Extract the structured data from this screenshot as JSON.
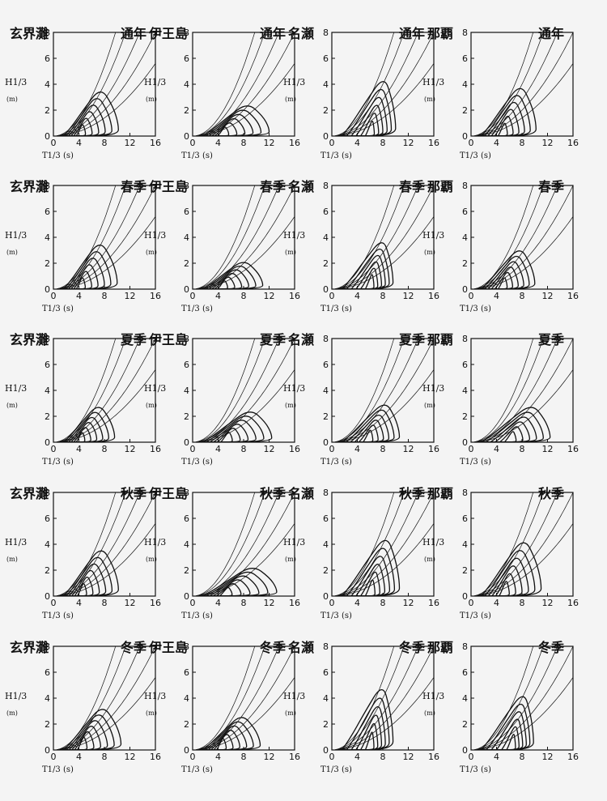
{
  "colors": {
    "ink": "#111111",
    "background": "#f4f4f4"
  },
  "chart_data": {
    "type": "contour",
    "stations": [
      "玄界灘",
      "伊王島",
      "名瀬",
      "那覇"
    ],
    "seasons": [
      "通年",
      "春季",
      "夏季",
      "秋季",
      "冬季"
    ],
    "ylabel": "H1/3",
    "yunit": "(m)",
    "xlabel": "T1/3 (s)",
    "xlim": [
      0,
      16
    ],
    "ylim": [
      0,
      8
    ],
    "xticks": [
      0,
      4,
      8,
      12,
      16
    ],
    "yticks": [
      0,
      2,
      4,
      6,
      8
    ],
    "steepness_curves": [
      0.054,
      0.04,
      0.028,
      0.02,
      0.014
    ],
    "contour_levels": 6,
    "panels": [
      {
        "station": "玄界灘",
        "season": "通年",
        "peak": [
          4.0,
          0.4
        ],
        "extent": [
          10.2,
          3.8
        ]
      },
      {
        "station": "伊王島",
        "season": "通年",
        "peak": [
          4.4,
          0.4
        ],
        "extent": [
          12.0,
          2.6
        ]
      },
      {
        "station": "名瀬",
        "season": "通年",
        "peak": [
          6.0,
          0.6
        ],
        "extent": [
          10.0,
          4.7
        ]
      },
      {
        "station": "那覇",
        "season": "通年",
        "peak": [
          4.8,
          0.5
        ],
        "extent": [
          10.2,
          4.1
        ]
      },
      {
        "station": "玄界灘",
        "season": "春季",
        "peak": [
          4.0,
          0.4
        ],
        "extent": [
          10.0,
          3.8
        ]
      },
      {
        "station": "伊王島",
        "season": "春季",
        "peak": [
          4.4,
          0.4
        ],
        "extent": [
          11.0,
          2.3
        ]
      },
      {
        "station": "名瀬",
        "season": "春季",
        "peak": [
          6.0,
          0.7
        ],
        "extent": [
          9.6,
          4.0
        ]
      },
      {
        "station": "那覇",
        "season": "春季",
        "peak": [
          4.8,
          0.5
        ],
        "extent": [
          10.0,
          3.3
        ]
      },
      {
        "station": "玄界灘",
        "season": "夏季",
        "peak": [
          4.0,
          0.4
        ],
        "extent": [
          9.6,
          3.0
        ]
      },
      {
        "station": "伊王島",
        "season": "夏季",
        "peak": [
          5.0,
          0.5
        ],
        "extent": [
          12.4,
          2.6
        ]
      },
      {
        "station": "名瀬",
        "season": "夏季",
        "peak": [
          5.6,
          0.6
        ],
        "extent": [
          10.6,
          3.2
        ]
      },
      {
        "station": "那覇",
        "season": "夏季",
        "peak": [
          6.0,
          0.5
        ],
        "extent": [
          12.4,
          3.0
        ]
      },
      {
        "station": "玄界灘",
        "season": "秋季",
        "peak": [
          4.2,
          0.5
        ],
        "extent": [
          10.2,
          3.9
        ]
      },
      {
        "station": "伊王島",
        "season": "秋季",
        "peak": [
          4.8,
          0.4
        ],
        "extent": [
          13.2,
          2.4
        ]
      },
      {
        "station": "名瀬",
        "season": "秋季",
        "peak": [
          6.0,
          0.7
        ],
        "extent": [
          10.6,
          4.8
        ]
      },
      {
        "station": "那覇",
        "season": "秋季",
        "peak": [
          5.0,
          0.6
        ],
        "extent": [
          11.0,
          4.6
        ]
      },
      {
        "station": "玄界灘",
        "season": "冬季",
        "peak": [
          4.2,
          0.6
        ],
        "extent": [
          10.6,
          3.5
        ]
      },
      {
        "station": "伊王島",
        "season": "冬季",
        "peak": [
          4.2,
          0.6
        ],
        "extent": [
          10.6,
          2.8
        ]
      },
      {
        "station": "名瀬",
        "season": "冬季",
        "peak": [
          6.0,
          0.8
        ],
        "extent": [
          9.6,
          5.2
        ]
      },
      {
        "station": "那覇",
        "season": "冬季",
        "peak": [
          6.4,
          0.7
        ],
        "extent": [
          9.8,
          4.6
        ]
      }
    ]
  }
}
